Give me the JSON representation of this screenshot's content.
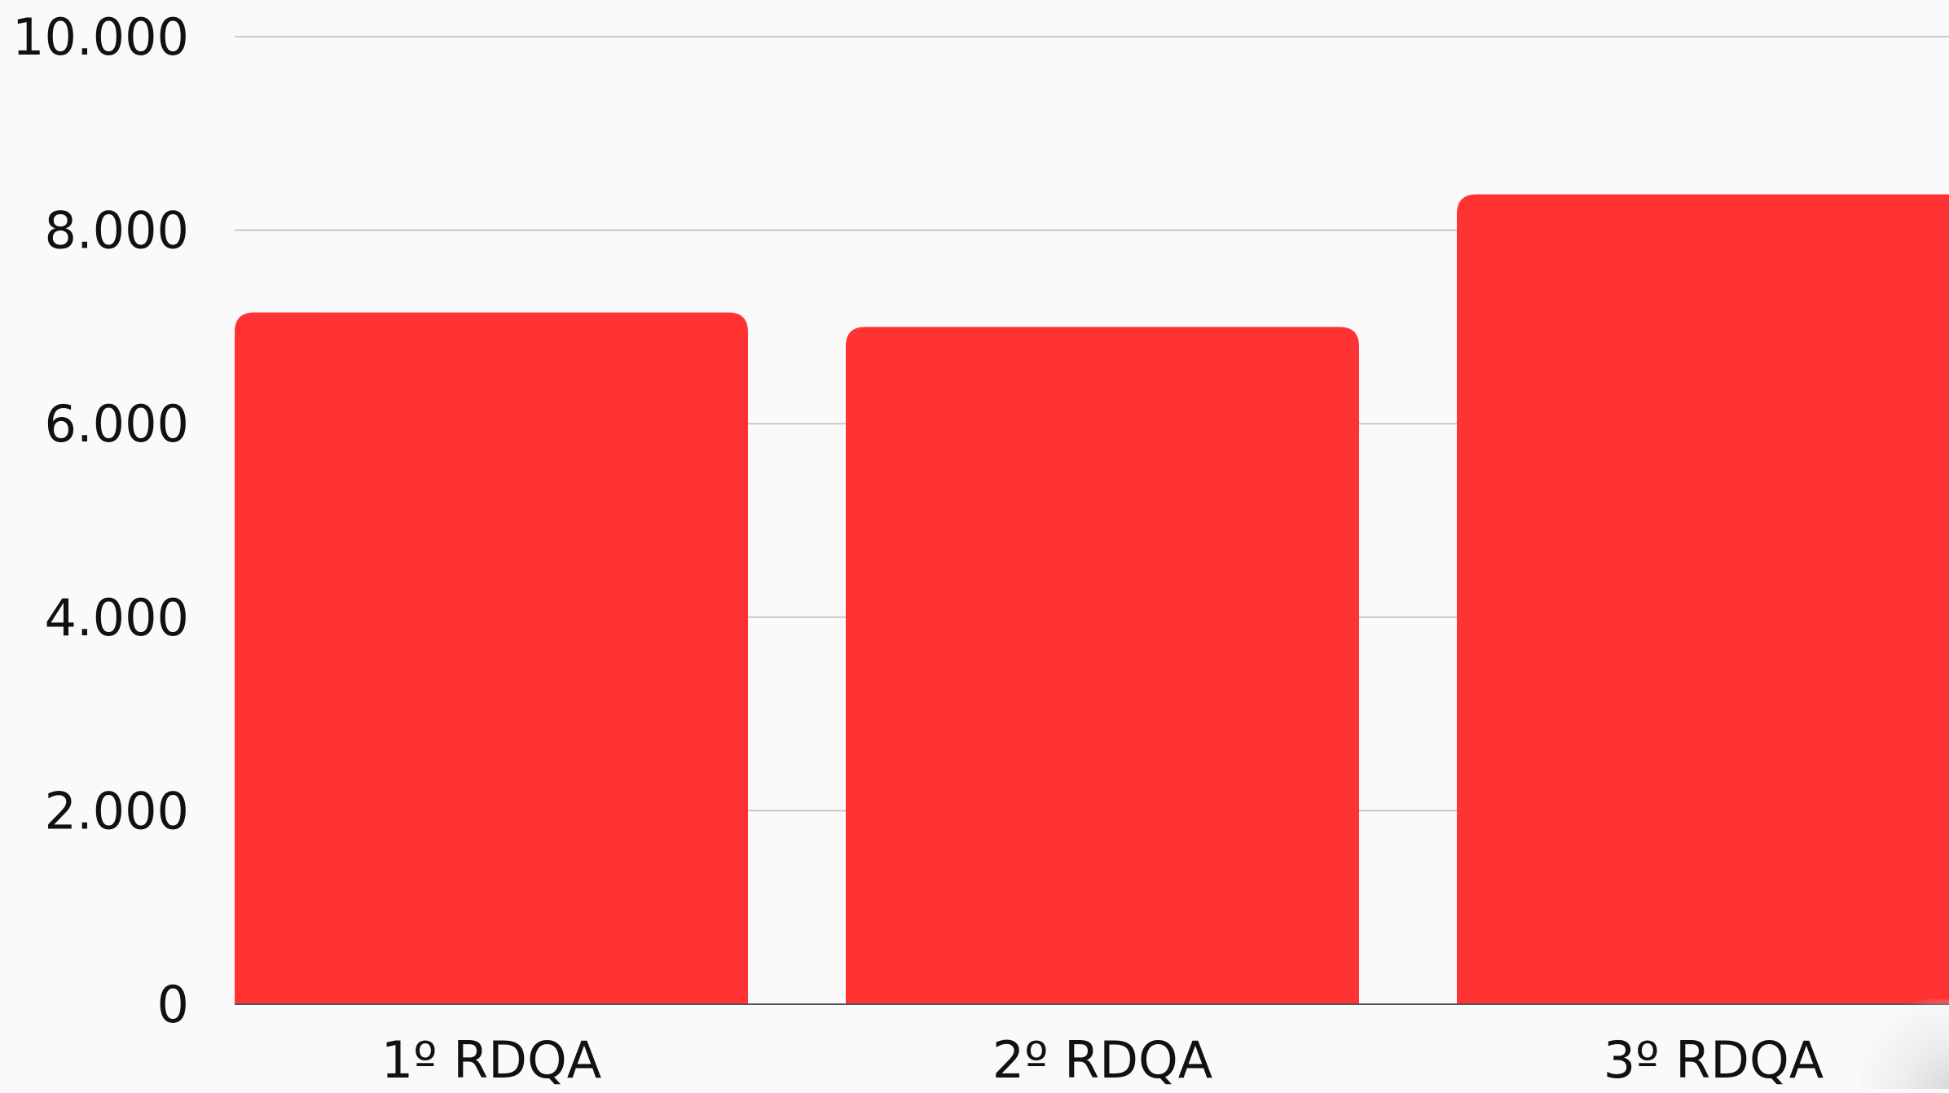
{
  "chart_data": {
    "type": "bar",
    "title": "",
    "xlabel": "",
    "ylabel": "",
    "categories": [
      "1º RDQA",
      "2º RDQA",
      "3º RDQA"
    ],
    "values": [
      7150,
      7000,
      8370
    ],
    "ylim": [
      0,
      10000
    ],
    "yticks": [
      0,
      2000,
      4000,
      6000,
      8000,
      10000
    ],
    "ytick_labels": [
      "0",
      "2.000",
      "4.000",
      "6.000",
      "8.000",
      "10.000"
    ],
    "grid": true,
    "legend": "none",
    "colors": {
      "bar": "#ff3333",
      "grid": "#c8c8c8",
      "baseline": "#555555",
      "background": "#fafafa"
    }
  }
}
